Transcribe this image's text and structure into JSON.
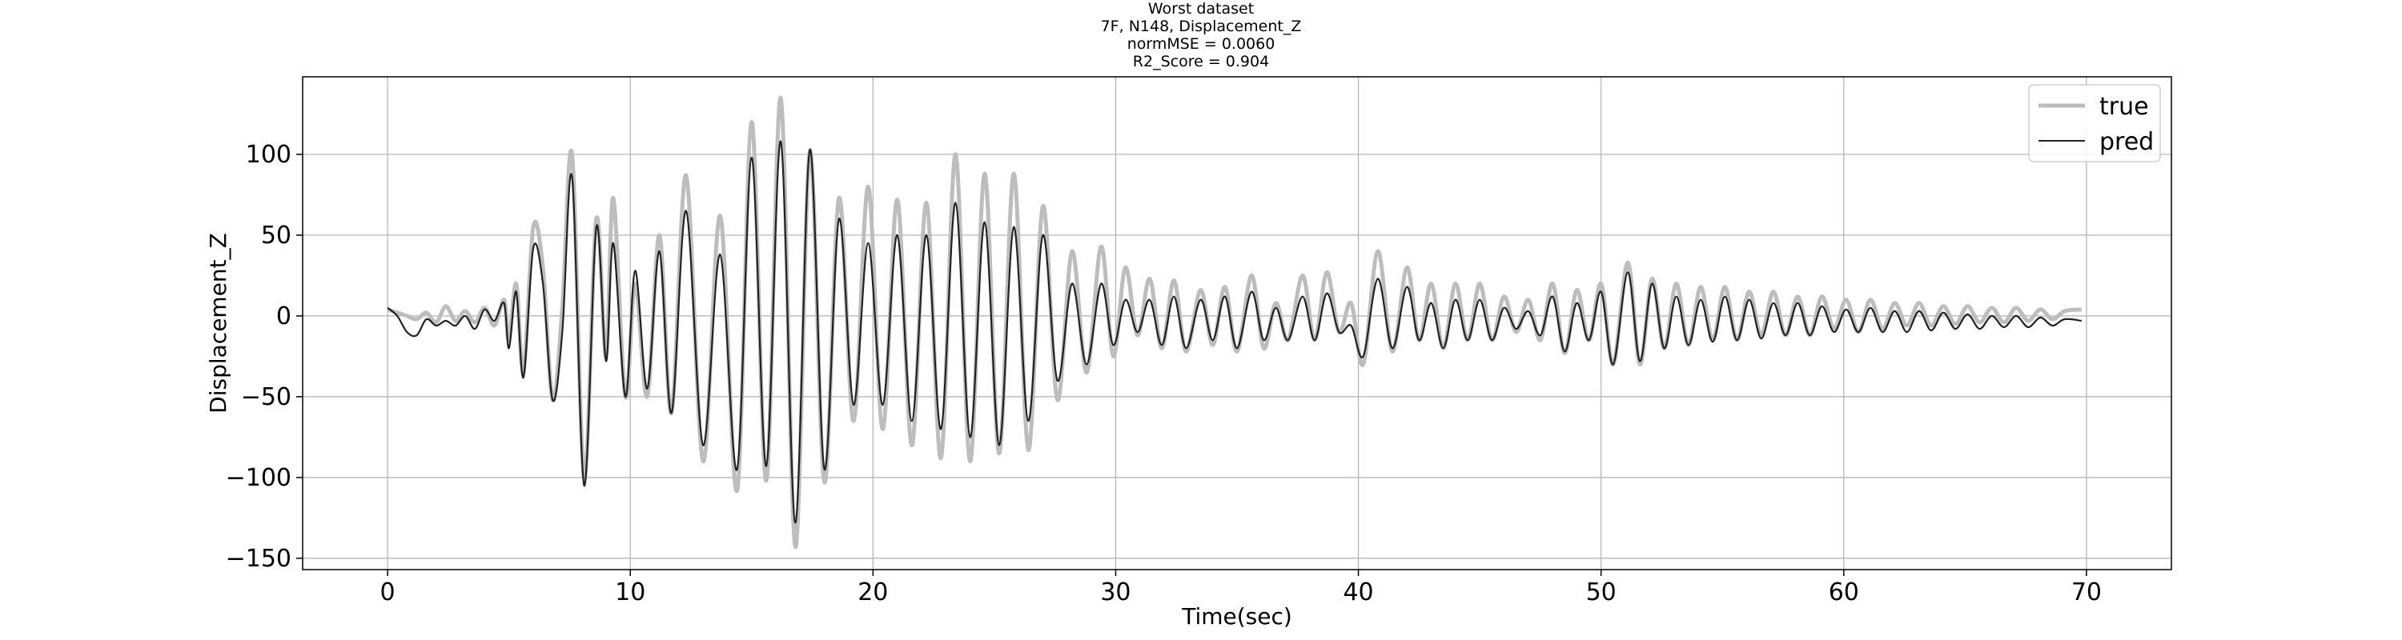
{
  "title_lines": [
    "Worst dataset",
    "7F, N148, Displacement_Z",
    "normMSE = 0.0060",
    "R2_Score = 0.904"
  ],
  "chart_data": {
    "type": "line",
    "xlabel": "Time(sec)",
    "ylabel": "Displacement_Z",
    "xlim": [
      -3.5,
      73.5
    ],
    "ylim": [
      -157,
      148
    ],
    "xticks": [
      0,
      10,
      20,
      30,
      40,
      50,
      60,
      70
    ],
    "yticks": [
      -150,
      -100,
      -50,
      0,
      50,
      100
    ],
    "grid": true,
    "legend_position": "top-right",
    "series": [
      {
        "name": "true",
        "color": "#bdbdbd",
        "points": [
          [
            0.0,
            4
          ],
          [
            0.4,
            2
          ],
          [
            0.8,
            0
          ],
          [
            1.2,
            -2
          ],
          [
            1.6,
            2
          ],
          [
            2.0,
            -4
          ],
          [
            2.4,
            6
          ],
          [
            2.8,
            -3
          ],
          [
            3.2,
            3
          ],
          [
            3.6,
            -4
          ],
          [
            4.0,
            5
          ],
          [
            4.4,
            -6
          ],
          [
            4.8,
            10
          ],
          [
            5.0,
            -15
          ],
          [
            5.3,
            20
          ],
          [
            5.6,
            -35
          ],
          [
            6.0,
            55
          ],
          [
            6.4,
            30
          ],
          [
            6.8,
            -52
          ],
          [
            7.2,
            5
          ],
          [
            7.6,
            100
          ],
          [
            8.1,
            -100
          ],
          [
            8.6,
            60
          ],
          [
            9.0,
            -25
          ],
          [
            9.3,
            73
          ],
          [
            9.8,
            -50
          ],
          [
            10.2,
            20
          ],
          [
            10.7,
            -50
          ],
          [
            11.2,
            50
          ],
          [
            11.7,
            -60
          ],
          [
            12.3,
            87
          ],
          [
            13.0,
            -90
          ],
          [
            13.7,
            62
          ],
          [
            14.4,
            -108
          ],
          [
            15.0,
            120
          ],
          [
            15.6,
            -102
          ],
          [
            16.2,
            135
          ],
          [
            16.8,
            -143
          ],
          [
            17.4,
            102
          ],
          [
            18.0,
            -103
          ],
          [
            18.6,
            73
          ],
          [
            19.2,
            -65
          ],
          [
            19.8,
            80
          ],
          [
            20.4,
            -70
          ],
          [
            21.0,
            72
          ],
          [
            21.6,
            -80
          ],
          [
            22.2,
            70
          ],
          [
            22.8,
            -88
          ],
          [
            23.4,
            100
          ],
          [
            24.0,
            -90
          ],
          [
            24.6,
            88
          ],
          [
            25.2,
            -85
          ],
          [
            25.8,
            88
          ],
          [
            26.4,
            -83
          ],
          [
            27.0,
            68
          ],
          [
            27.6,
            -52
          ],
          [
            28.2,
            40
          ],
          [
            28.8,
            -35
          ],
          [
            29.4,
            43
          ],
          [
            29.9,
            -25
          ],
          [
            30.4,
            30
          ],
          [
            30.9,
            -12
          ],
          [
            31.4,
            23
          ],
          [
            31.9,
            -20
          ],
          [
            32.4,
            22
          ],
          [
            32.9,
            -22
          ],
          [
            33.5,
            16
          ],
          [
            34.0,
            -18
          ],
          [
            34.5,
            18
          ],
          [
            35.0,
            -22
          ],
          [
            35.6,
            25
          ],
          [
            36.1,
            -20
          ],
          [
            36.6,
            8
          ],
          [
            37.1,
            -15
          ],
          [
            37.7,
            25
          ],
          [
            38.2,
            -15
          ],
          [
            38.7,
            27
          ],
          [
            39.2,
            -10
          ],
          [
            39.7,
            8
          ],
          [
            40.2,
            -30
          ],
          [
            40.8,
            40
          ],
          [
            41.4,
            -22
          ],
          [
            42.0,
            30
          ],
          [
            42.5,
            -15
          ],
          [
            43.0,
            20
          ],
          [
            43.5,
            -20
          ],
          [
            44.0,
            20
          ],
          [
            44.5,
            -15
          ],
          [
            45.0,
            20
          ],
          [
            45.5,
            -15
          ],
          [
            46.0,
            12
          ],
          [
            46.5,
            -10
          ],
          [
            47.0,
            10
          ],
          [
            47.5,
            -15
          ],
          [
            48.0,
            20
          ],
          [
            48.5,
            -23
          ],
          [
            49.0,
            16
          ],
          [
            49.5,
            -15
          ],
          [
            50.0,
            20
          ],
          [
            50.5,
            -30
          ],
          [
            51.1,
            33
          ],
          [
            51.6,
            -30
          ],
          [
            52.1,
            23
          ],
          [
            52.6,
            -20
          ],
          [
            53.1,
            20
          ],
          [
            53.6,
            -18
          ],
          [
            54.1,
            18
          ],
          [
            54.6,
            -15
          ],
          [
            55.1,
            18
          ],
          [
            55.6,
            -15
          ],
          [
            56.1,
            15
          ],
          [
            56.6,
            -12
          ],
          [
            57.1,
            15
          ],
          [
            57.6,
            -12
          ],
          [
            58.1,
            12
          ],
          [
            58.6,
            -12
          ],
          [
            59.1,
            12
          ],
          [
            59.6,
            -8
          ],
          [
            60.1,
            10
          ],
          [
            60.6,
            -10
          ],
          [
            61.1,
            10
          ],
          [
            61.6,
            -8
          ],
          [
            62.1,
            8
          ],
          [
            62.6,
            -6
          ],
          [
            63.1,
            8
          ],
          [
            63.6,
            -6
          ],
          [
            64.1,
            6
          ],
          [
            64.6,
            -5
          ],
          [
            65.1,
            6
          ],
          [
            65.6,
            -4
          ],
          [
            66.1,
            5
          ],
          [
            66.6,
            -4
          ],
          [
            67.1,
            5
          ],
          [
            67.6,
            -3
          ],
          [
            68.1,
            4
          ],
          [
            68.6,
            -2
          ],
          [
            69.1,
            3
          ],
          [
            69.8,
            4
          ]
        ]
      },
      {
        "name": "pred",
        "color": "#222222",
        "points": [
          [
            0.0,
            5
          ],
          [
            0.4,
            0
          ],
          [
            0.8,
            -10
          ],
          [
            1.2,
            -12
          ],
          [
            1.6,
            -2
          ],
          [
            2.0,
            -6
          ],
          [
            2.4,
            -3
          ],
          [
            2.8,
            -6
          ],
          [
            3.2,
            0
          ],
          [
            3.6,
            -8
          ],
          [
            4.0,
            4
          ],
          [
            4.4,
            -3
          ],
          [
            4.8,
            8
          ],
          [
            5.0,
            -20
          ],
          [
            5.3,
            15
          ],
          [
            5.6,
            -38
          ],
          [
            6.0,
            42
          ],
          [
            6.4,
            20
          ],
          [
            6.8,
            -52
          ],
          [
            7.2,
            -10
          ],
          [
            7.6,
            86
          ],
          [
            8.1,
            -105
          ],
          [
            8.6,
            55
          ],
          [
            9.0,
            -28
          ],
          [
            9.3,
            45
          ],
          [
            9.8,
            -50
          ],
          [
            10.2,
            28
          ],
          [
            10.7,
            -45
          ],
          [
            11.2,
            40
          ],
          [
            11.7,
            -60
          ],
          [
            12.3,
            65
          ],
          [
            13.0,
            -80
          ],
          [
            13.7,
            38
          ],
          [
            14.4,
            -95
          ],
          [
            15.0,
            98
          ],
          [
            15.6,
            -93
          ],
          [
            16.2,
            108
          ],
          [
            16.8,
            -128
          ],
          [
            17.4,
            103
          ],
          [
            18.0,
            -95
          ],
          [
            18.6,
            60
          ],
          [
            19.2,
            -55
          ],
          [
            19.8,
            45
          ],
          [
            20.4,
            -55
          ],
          [
            21.0,
            50
          ],
          [
            21.6,
            -65
          ],
          [
            22.2,
            50
          ],
          [
            22.8,
            -70
          ],
          [
            23.4,
            70
          ],
          [
            24.0,
            -75
          ],
          [
            24.6,
            58
          ],
          [
            25.2,
            -80
          ],
          [
            25.8,
            55
          ],
          [
            26.4,
            -65
          ],
          [
            27.0,
            50
          ],
          [
            27.6,
            -40
          ],
          [
            28.2,
            20
          ],
          [
            28.8,
            -30
          ],
          [
            29.4,
            20
          ],
          [
            29.9,
            -18
          ],
          [
            30.4,
            10
          ],
          [
            30.9,
            -10
          ],
          [
            31.4,
            10
          ],
          [
            31.9,
            -18
          ],
          [
            32.4,
            12
          ],
          [
            32.9,
            -20
          ],
          [
            33.5,
            10
          ],
          [
            34.0,
            -15
          ],
          [
            34.5,
            12
          ],
          [
            35.0,
            -20
          ],
          [
            35.6,
            15
          ],
          [
            36.1,
            -15
          ],
          [
            36.6,
            5
          ],
          [
            37.1,
            -15
          ],
          [
            37.7,
            12
          ],
          [
            38.2,
            -15
          ],
          [
            38.7,
            14
          ],
          [
            39.2,
            -10
          ],
          [
            39.7,
            -6
          ],
          [
            40.2,
            -25
          ],
          [
            40.8,
            23
          ],
          [
            41.4,
            -20
          ],
          [
            42.0,
            18
          ],
          [
            42.5,
            -15
          ],
          [
            43.0,
            8
          ],
          [
            43.5,
            -20
          ],
          [
            44.0,
            10
          ],
          [
            44.5,
            -15
          ],
          [
            45.0,
            10
          ],
          [
            45.5,
            -15
          ],
          [
            46.0,
            5
          ],
          [
            46.5,
            -8
          ],
          [
            47.0,
            3
          ],
          [
            47.5,
            -12
          ],
          [
            48.0,
            12
          ],
          [
            48.5,
            -22
          ],
          [
            49.0,
            8
          ],
          [
            49.5,
            -15
          ],
          [
            50.0,
            15
          ],
          [
            50.5,
            -30
          ],
          [
            51.1,
            27
          ],
          [
            51.6,
            -28
          ],
          [
            52.1,
            20
          ],
          [
            52.6,
            -20
          ],
          [
            53.1,
            12
          ],
          [
            53.6,
            -18
          ],
          [
            54.1,
            10
          ],
          [
            54.6,
            -16
          ],
          [
            55.1,
            12
          ],
          [
            55.6,
            -15
          ],
          [
            56.1,
            10
          ],
          [
            56.6,
            -14
          ],
          [
            57.1,
            8
          ],
          [
            57.6,
            -12
          ],
          [
            58.1,
            8
          ],
          [
            58.6,
            -12
          ],
          [
            59.1,
            6
          ],
          [
            59.6,
            -10
          ],
          [
            60.1,
            4
          ],
          [
            60.6,
            -10
          ],
          [
            61.1,
            5
          ],
          [
            61.6,
            -10
          ],
          [
            62.1,
            3
          ],
          [
            62.6,
            -10
          ],
          [
            63.1,
            3
          ],
          [
            63.6,
            -9
          ],
          [
            64.1,
            2
          ],
          [
            64.6,
            -8
          ],
          [
            65.1,
            1
          ],
          [
            65.6,
            -8
          ],
          [
            66.1,
            0
          ],
          [
            66.6,
            -7
          ],
          [
            67.1,
            0
          ],
          [
            67.6,
            -7
          ],
          [
            68.1,
            -1
          ],
          [
            68.6,
            -6
          ],
          [
            69.1,
            -2
          ],
          [
            69.8,
            -3
          ]
        ]
      }
    ]
  }
}
